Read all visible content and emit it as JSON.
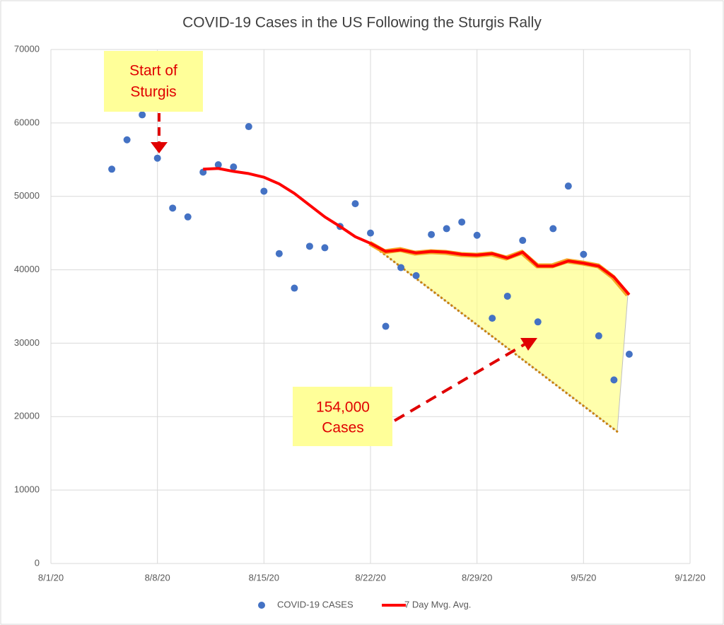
{
  "chart_data": {
    "type": "scatter",
    "title": "COVID-19 Cases in the US Following the Sturgis Rally",
    "xlim": [
      "8/1/20",
      "9/12/20"
    ],
    "xticks": [
      "8/1/20",
      "8/8/20",
      "8/15/20",
      "8/22/20",
      "8/29/20",
      "9/5/20",
      "9/12/20"
    ],
    "ylim": [
      0,
      70000
    ],
    "yticks": [
      0,
      10000,
      20000,
      30000,
      40000,
      50000,
      60000,
      70000
    ],
    "grid": true,
    "legend": "bottom",
    "series": [
      {
        "name": "COVID-19 CASES",
        "type": "scatter",
        "color": "#4472c4",
        "x": [
          "8/5/20",
          "8/6/20",
          "8/7/20",
          "8/8/20",
          "8/9/20",
          "8/10/20",
          "8/11/20",
          "8/12/20",
          "8/13/20",
          "8/14/20",
          "8/15/20",
          "8/16/20",
          "8/17/20",
          "8/18/20",
          "8/19/20",
          "8/20/20",
          "8/21/20",
          "8/22/20",
          "8/23/20",
          "8/24/20",
          "8/25/20",
          "8/26/20",
          "8/27/20",
          "8/28/20",
          "8/29/20",
          "8/30/20",
          "8/31/20",
          "9/1/20",
          "9/2/20",
          "9/3/20",
          "9/4/20",
          "9/5/20",
          "9/6/20",
          "9/7/20",
          "9/8/20"
        ],
        "values": [
          53700,
          57700,
          61100,
          55200,
          48400,
          47200,
          53300,
          54300,
          54000,
          59500,
          50700,
          42200,
          37500,
          43200,
          43000,
          45900,
          49000,
          45000,
          32300,
          40300,
          39200,
          44800,
          45600,
          46500,
          44700,
          33400,
          36400,
          44000,
          32900,
          45600,
          51400,
          42100,
          31000,
          25000,
          28500
        ]
      },
      {
        "name": "7 Day Mvg. Avg.",
        "type": "line",
        "color": "#ff0000",
        "x": [
          "8/11/20",
          "8/12/20",
          "8/13/20",
          "8/14/20",
          "8/15/20",
          "8/16/20",
          "8/17/20",
          "8/18/20",
          "8/19/20",
          "8/20/20",
          "8/21/20",
          "8/22/20",
          "8/23/20",
          "8/24/20",
          "8/25/20",
          "8/26/20",
          "8/27/20",
          "8/28/20",
          "8/29/20",
          "8/30/20",
          "8/31/20",
          "9/1/20",
          "9/2/20",
          "9/3/20",
          "9/4/20",
          "9/5/20",
          "9/6/20",
          "9/7/20",
          "9/8/20"
        ],
        "values": [
          53700,
          53800,
          53400,
          53100,
          52600,
          51700,
          50400,
          48800,
          47200,
          45900,
          44500,
          43600,
          42500,
          42700,
          42300,
          42500,
          42400,
          42100,
          42000,
          42200,
          41600,
          42400,
          40500,
          40500,
          41200,
          40900,
          40500,
          39000,
          36600
        ]
      }
    ],
    "annotations": [
      {
        "lines": [
          "Start of",
          "Sturgis"
        ]
      },
      {
        "lines": [
          "154,000",
          "Cases"
        ]
      }
    ]
  }
}
